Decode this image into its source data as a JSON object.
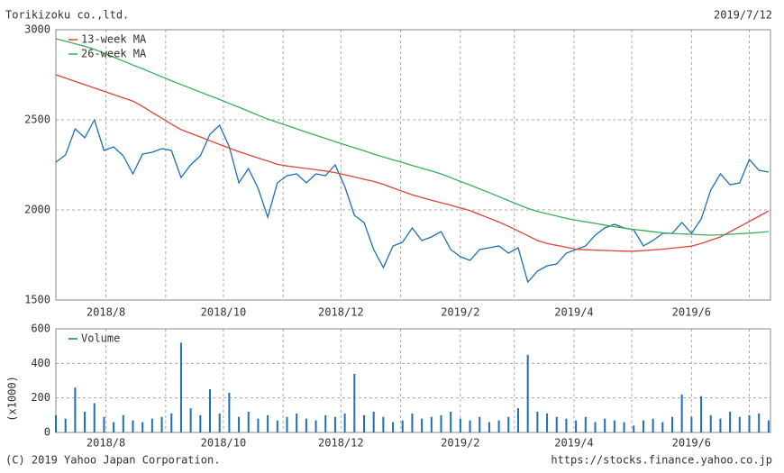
{
  "chart_data": [
    {
      "type": "line",
      "title": "Torikizoku co.,ltd.",
      "date": "2019/7/12",
      "xlim": [
        0,
        371
      ],
      "xticks": [
        {
          "value": 26,
          "label": "2018/8"
        },
        {
          "value": 87,
          "label": "2018/10"
        },
        {
          "value": 148,
          "label": "2018/12"
        },
        {
          "value": 210,
          "label": "2019/2"
        },
        {
          "value": 269,
          "label": "2019/4"
        },
        {
          "value": 330,
          "label": "2019/6"
        }
      ],
      "x_minor_ticks": [
        57,
        118,
        179,
        238,
        299,
        360
      ],
      "ylim": [
        1500,
        3000
      ],
      "yticks": [
        1500,
        2000,
        2500,
        3000
      ],
      "grid": true,
      "legend": "upper left",
      "x": [
        0,
        5,
        10,
        15,
        20,
        25,
        30,
        35,
        40,
        45,
        50,
        55,
        60,
        65,
        70,
        75,
        80,
        85,
        90,
        95,
        100,
        105,
        110,
        115,
        120,
        125,
        130,
        135,
        140,
        145,
        150,
        155,
        160,
        165,
        170,
        175,
        180,
        185,
        190,
        195,
        200,
        205,
        210,
        215,
        220,
        225,
        230,
        235,
        240,
        245,
        250,
        255,
        260,
        265,
        270,
        275,
        280,
        285,
        290,
        295,
        300,
        305,
        310,
        315,
        320,
        325,
        330,
        335,
        340,
        345,
        350,
        355,
        360,
        365,
        370
      ],
      "series": [
        {
          "color": "#1f6fb5",
          "values": [
            2265,
            2305,
            2450,
            2400,
            2500,
            2330,
            2350,
            2300,
            2200,
            2310,
            2320,
            2340,
            2330,
            2180,
            2250,
            2300,
            2420,
            2470,
            2350,
            2150,
            2230,
            2120,
            1960,
            2150,
            2190,
            2200,
            2150,
            2200,
            2190,
            2250,
            2130,
            1970,
            1930,
            1780,
            1680,
            1800,
            1820,
            1900,
            1830,
            1850,
            1880,
            1780,
            1740,
            1720,
            1780,
            1790,
            1800,
            1760,
            1790,
            1600,
            1660,
            1690,
            1700,
            1760,
            1780,
            1800,
            1860,
            1900,
            1920,
            1900,
            1890,
            1800,
            1830,
            1870,
            1870,
            1930,
            1870,
            1950,
            2110,
            2200,
            2140,
            2150,
            2280,
            2220,
            2210
          ]
        },
        {
          "name": "13-week MA",
          "color": "#d9453a",
          "values": [
            2750,
            2732,
            2713,
            2695,
            2677,
            2659,
            2640,
            2622,
            2604,
            2574,
            2541,
            2509,
            2476,
            2446,
            2425,
            2405,
            2384,
            2363,
            2343,
            2323,
            2306,
            2288,
            2271,
            2253,
            2244,
            2237,
            2230,
            2223,
            2216,
            2207,
            2195,
            2183,
            2170,
            2158,
            2142,
            2122,
            2103,
            2084,
            2069,
            2054,
            2040,
            2026,
            2011,
            1996,
            1975,
            1954,
            1933,
            1909,
            1883,
            1857,
            1830,
            1814,
            1803,
            1793,
            1782,
            1779,
            1777,
            1775,
            1773,
            1771,
            1771,
            1774,
            1778,
            1782,
            1788,
            1793,
            1799,
            1814,
            1832,
            1850,
            1879,
            1907,
            1936,
            1965,
            1994
          ]
        },
        {
          "name": "26-week MA",
          "color": "#3aae5c",
          "values": [
            2950,
            2936,
            2922,
            2908,
            2891,
            2870,
            2848,
            2826,
            2804,
            2783,
            2761,
            2739,
            2717,
            2696,
            2675,
            2654,
            2633,
            2613,
            2591,
            2570,
            2548,
            2526,
            2504,
            2486,
            2468,
            2450,
            2432,
            2414,
            2397,
            2379,
            2362,
            2345,
            2328,
            2310,
            2294,
            2278,
            2263,
            2247,
            2231,
            2216,
            2200,
            2179,
            2158,
            2138,
            2117,
            2096,
            2074,
            2052,
            2030,
            2009,
            1992,
            1979,
            1966,
            1953,
            1943,
            1934,
            1925,
            1916,
            1907,
            1899,
            1892,
            1886,
            1879,
            1873,
            1869,
            1867,
            1865,
            1862,
            1860,
            1862,
            1865,
            1868,
            1871,
            1875,
            1880
          ]
        }
      ]
    },
    {
      "type": "bar",
      "ylabel": "(x1000)",
      "xlim": [
        0,
        371
      ],
      "xticks": [
        {
          "value": 26,
          "label": "2018/8"
        },
        {
          "value": 87,
          "label": "2018/10"
        },
        {
          "value": 148,
          "label": "2018/12"
        },
        {
          "value": 210,
          "label": "2019/2"
        },
        {
          "value": 269,
          "label": "2019/4"
        },
        {
          "value": 330,
          "label": "2019/6"
        }
      ],
      "x_minor_ticks": [
        57,
        118,
        179,
        238,
        299,
        360
      ],
      "ylim": [
        0,
        600
      ],
      "yticks": [
        0,
        200,
        400,
        600
      ],
      "grid": true,
      "legend": "upper left",
      "x": [
        0,
        5,
        10,
        15,
        20,
        25,
        30,
        35,
        40,
        45,
        50,
        55,
        60,
        65,
        70,
        75,
        80,
        85,
        90,
        95,
        100,
        105,
        110,
        115,
        120,
        125,
        130,
        135,
        140,
        145,
        150,
        155,
        160,
        165,
        170,
        175,
        180,
        185,
        190,
        195,
        200,
        205,
        210,
        215,
        220,
        225,
        230,
        235,
        240,
        245,
        250,
        255,
        260,
        265,
        270,
        275,
        280,
        285,
        290,
        295,
        300,
        305,
        310,
        315,
        320,
        325,
        330,
        335,
        340,
        345,
        350,
        355,
        360,
        365,
        370
      ],
      "series": [
        {
          "name": "Volume",
          "color": "#1f6fb5",
          "values": [
            100,
            80,
            260,
            120,
            170,
            90,
            60,
            100,
            70,
            60,
            80,
            90,
            110,
            520,
            140,
            100,
            250,
            110,
            230,
            90,
            120,
            80,
            100,
            70,
            90,
            110,
            80,
            70,
            100,
            90,
            110,
            340,
            100,
            120,
            90,
            60,
            70,
            110,
            80,
            90,
            100,
            120,
            80,
            70,
            90,
            60,
            70,
            90,
            140,
            450,
            120,
            110,
            90,
            80,
            70,
            90,
            60,
            80,
            70,
            60,
            40,
            70,
            80,
            60,
            90,
            220,
            90,
            210,
            100,
            80,
            120,
            90,
            100,
            110,
            70
          ]
        }
      ]
    }
  ],
  "copyright": "(C) 2019 Yahoo Japan Corporation.",
  "source": "https://stocks.finance.yahoo.co.jp"
}
